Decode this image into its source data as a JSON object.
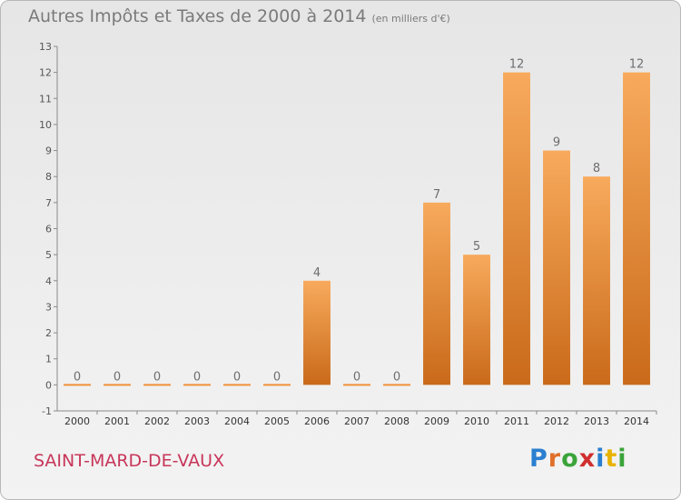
{
  "title": "Autres Impôts et Taxes de 2000 à 2014",
  "unit": "(en milliers d'€)",
  "commune": "SAINT-MARD-DE-VAUX",
  "logo": {
    "p": "P",
    "r": "r",
    "o": "o",
    "x": "x",
    "i": "i",
    "t": "t",
    "i2": "i"
  },
  "colors": {
    "bar": "#f0913a",
    "bar_light": "#f8aa5c",
    "bar_dark": "#c96a1a",
    "label": "#6e6e6e",
    "commune": "#c8365a"
  },
  "chart_data": {
    "type": "bar",
    "title": "Autres Impôts et Taxes de 2000 à 2014",
    "subtitle": "(en milliers d'€)",
    "categories": [
      "2000",
      "2001",
      "2002",
      "2003",
      "2004",
      "2005",
      "2006",
      "2007",
      "2008",
      "2009",
      "2010",
      "2011",
      "2012",
      "2013",
      "2014"
    ],
    "values": [
      0,
      0,
      0,
      0,
      0,
      0,
      4,
      0,
      0,
      7,
      5,
      12,
      9,
      8,
      12
    ],
    "data_labels": [
      "0",
      "0",
      "0",
      "0",
      "0",
      "0",
      "4",
      "0",
      "0",
      "7",
      "5",
      "12",
      "9",
      "8",
      "12"
    ],
    "ylim": [
      -1,
      13
    ],
    "yticks": [
      "-1",
      "0",
      "1",
      "2",
      "3",
      "4",
      "5",
      "6",
      "7",
      "8",
      "9",
      "10",
      "11",
      "12",
      "13"
    ],
    "xlabel": "",
    "ylabel": "",
    "grid": false,
    "legend": "none"
  }
}
